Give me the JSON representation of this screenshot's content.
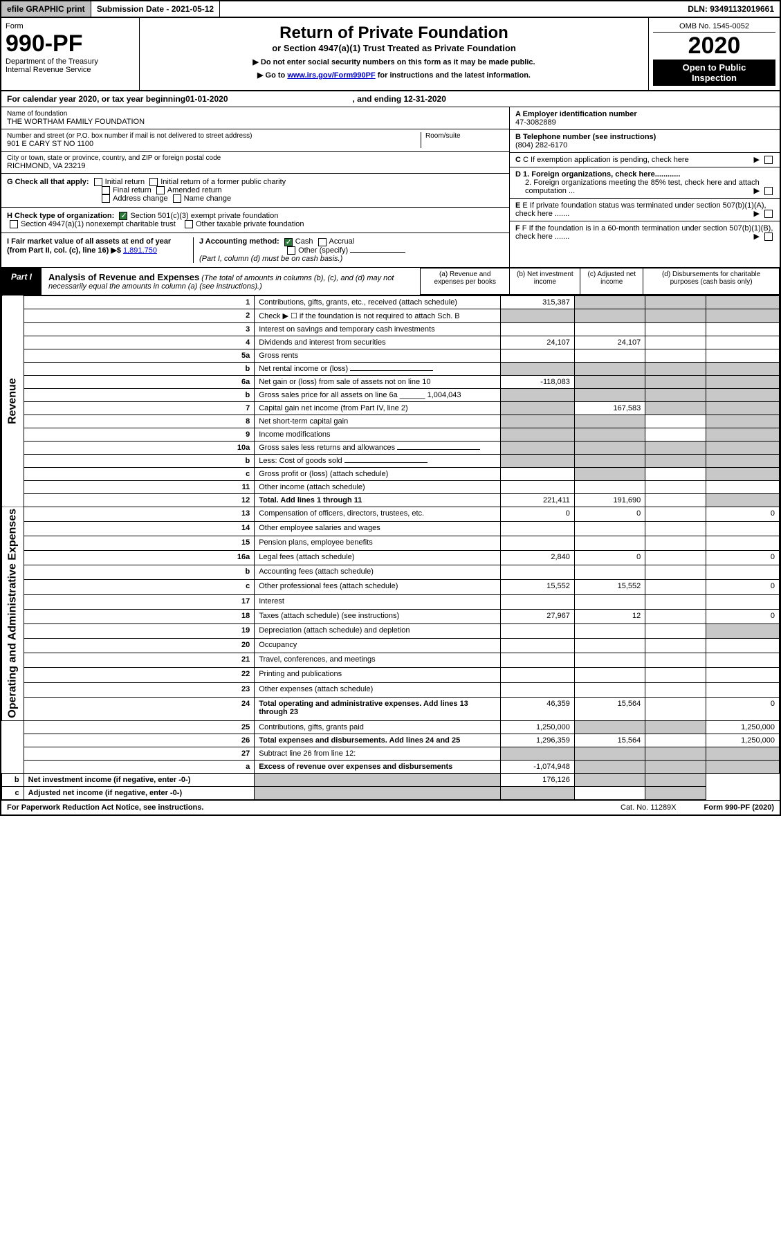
{
  "topbar": {
    "efile": "efile GRAPHIC print",
    "subdate_label": "Submission Date - ",
    "subdate": "2021-05-12",
    "dln_label": "DLN: ",
    "dln": "93491132019661"
  },
  "header": {
    "form_label": "Form",
    "form_no": "990-PF",
    "dept1": "Department of the Treasury",
    "dept2": "Internal Revenue Service",
    "title": "Return of Private Foundation",
    "subtitle": "or Section 4947(a)(1) Trust Treated as Private Foundation",
    "instr1": "▶ Do not enter social security numbers on this form as it may be made public.",
    "instr2_pre": "▶ Go to ",
    "instr2_link": "www.irs.gov/Form990PF",
    "instr2_post": " for instructions and the latest information.",
    "omb": "OMB No. 1545-0052",
    "year": "2020",
    "openpub1": "Open to Public",
    "openpub2": "Inspection"
  },
  "cal": {
    "pre": "For calendar year 2020, or tax year beginning ",
    "begin": "01-01-2020",
    "mid": ", and ending ",
    "end": "12-31-2020"
  },
  "info": {
    "name_label": "Name of foundation",
    "name": "THE WORTHAM FAMILY FOUNDATION",
    "addr_label": "Number and street (or P.O. box number if mail is not delivered to street address)",
    "room_label": "Room/suite",
    "addr": "901 E CARY ST NO 1100",
    "city_label": "City or town, state or province, country, and ZIP or foreign postal code",
    "city": "RICHMOND, VA  23219",
    "ein_label": "A Employer identification number",
    "ein": "47-3082889",
    "tel_label": "B Telephone number (see instructions)",
    "tel": "(804) 282-6170",
    "c_label": "C If exemption application is pending, check here",
    "d1": "D 1. Foreign organizations, check here............",
    "d2": "2. Foreign organizations meeting the 85% test, check here and attach computation ...",
    "e_label": "E If private foundation status was terminated under section 507(b)(1)(A), check here .......",
    "f_label": "F If the foundation is in a 60-month termination under section 507(b)(1)(B), check here .......",
    "g_label": "G Check all that apply:",
    "g_opts": [
      "Initial return",
      "Initial return of a former public charity",
      "Final return",
      "Amended return",
      "Address change",
      "Name change"
    ],
    "h_label": "H Check type of organization:",
    "h1": "Section 501(c)(3) exempt private foundation",
    "h2": "Section 4947(a)(1) nonexempt charitable trust",
    "h3": "Other taxable private foundation",
    "i_label": "I Fair market value of all assets at end of year (from Part II, col. (c), line 16) ▶$ ",
    "i_val": "1,891,750",
    "j_label": "J Accounting method:",
    "j_cash": "Cash",
    "j_accrual": "Accrual",
    "j_other": "Other (specify)",
    "j_note": "(Part I, column (d) must be on cash basis.)"
  },
  "part1": {
    "tab": "Part I",
    "title": "Analysis of Revenue and Expenses",
    "note": "(The total of amounts in columns (b), (c), and (d) may not necessarily equal the amounts in column (a) (see instructions).)",
    "cols": {
      "a": "(a) Revenue and expenses per books",
      "b": "(b) Net investment income",
      "c": "(c) Adjusted net income",
      "d": "(d) Disbursements for charitable purposes (cash basis only)"
    }
  },
  "side": {
    "rev": "Revenue",
    "exp": "Operating and Administrative Expenses"
  },
  "rows": [
    {
      "n": "1",
      "d": "Contributions, gifts, grants, etc., received (attach schedule)",
      "a": "315,387",
      "shade_bcd": true
    },
    {
      "n": "2",
      "d": "Check ▶ ☐ if the foundation is not required to attach Sch. B",
      "shade_all": true,
      "dotsline": true
    },
    {
      "n": "3",
      "d": "Interest on savings and temporary cash investments"
    },
    {
      "n": "4",
      "d": "Dividends and interest from securities",
      "a": "24,107",
      "b": "24,107"
    },
    {
      "n": "5a",
      "d": "Gross rents"
    },
    {
      "n": "b",
      "d": "Net rental income or (loss)",
      "inline_blank": true,
      "shade_all": true
    },
    {
      "n": "6a",
      "d": "Net gain or (loss) from sale of assets not on line 10",
      "a": "-118,083",
      "shade_bcd": true
    },
    {
      "n": "b",
      "d": "Gross sales price for all assets on line 6a",
      "inline_val": "1,004,043",
      "shade_all": true
    },
    {
      "n": "7",
      "d": "Capital gain net income (from Part IV, line 2)",
      "b": "167,583",
      "shade_a": true,
      "shade_cd": true
    },
    {
      "n": "8",
      "d": "Net short-term capital gain",
      "shade_ab": true,
      "shade_d": true
    },
    {
      "n": "9",
      "d": "Income modifications",
      "shade_ab": true,
      "shade_d": true
    },
    {
      "n": "10a",
      "d": "Gross sales less returns and allowances",
      "inline_blank": true,
      "shade_all": true
    },
    {
      "n": "b",
      "d": "Less: Cost of goods sold",
      "inline_blank": true,
      "shade_all": true
    },
    {
      "n": "c",
      "d": "Gross profit or (loss) (attach schedule)",
      "shade_b": true,
      "shade_d": true
    },
    {
      "n": "11",
      "d": "Other income (attach schedule)"
    },
    {
      "n": "12",
      "d": "Total. Add lines 1 through 11",
      "bold": true,
      "a": "221,411",
      "b": "191,690",
      "shade_d": true
    },
    {
      "n": "13",
      "d": "Compensation of officers, directors, trustees, etc.",
      "a": "0",
      "b": "0",
      "dval": "0"
    },
    {
      "n": "14",
      "d": "Other employee salaries and wages"
    },
    {
      "n": "15",
      "d": "Pension plans, employee benefits"
    },
    {
      "n": "16a",
      "d": "Legal fees (attach schedule)",
      "a": "2,840",
      "b": "0",
      "dval": "0"
    },
    {
      "n": "b",
      "d": "Accounting fees (attach schedule)"
    },
    {
      "n": "c",
      "d": "Other professional fees (attach schedule)",
      "a": "15,552",
      "b": "15,552",
      "dval": "0"
    },
    {
      "n": "17",
      "d": "Interest"
    },
    {
      "n": "18",
      "d": "Taxes (attach schedule) (see instructions)",
      "a": "27,967",
      "b": "12",
      "dval": "0"
    },
    {
      "n": "19",
      "d": "Depreciation (attach schedule) and depletion",
      "shade_d": true
    },
    {
      "n": "20",
      "d": "Occupancy"
    },
    {
      "n": "21",
      "d": "Travel, conferences, and meetings"
    },
    {
      "n": "22",
      "d": "Printing and publications"
    },
    {
      "n": "23",
      "d": "Other expenses (attach schedule)"
    },
    {
      "n": "24",
      "d": "Total operating and administrative expenses. Add lines 13 through 23",
      "bold": true,
      "a": "46,359",
      "b": "15,564",
      "dval": "0"
    },
    {
      "n": "25",
      "d": "Contributions, gifts, grants paid",
      "a": "1,250,000",
      "shade_bc": true,
      "dval": "1,250,000"
    },
    {
      "n": "26",
      "d": "Total expenses and disbursements. Add lines 24 and 25",
      "bold": true,
      "a": "1,296,359",
      "b": "15,564",
      "dval": "1,250,000"
    },
    {
      "n": "27",
      "d": "Subtract line 26 from line 12:",
      "shade_all": true
    },
    {
      "n": "a",
      "d": "Excess of revenue over expenses and disbursements",
      "bold": true,
      "a": "-1,074,948",
      "shade_bcd": true
    },
    {
      "n": "b",
      "d": "Net investment income (if negative, enter -0-)",
      "bold": true,
      "b": "176,126",
      "shade_a": true,
      "shade_cd": true
    },
    {
      "n": "c",
      "d": "Adjusted net income (if negative, enter -0-)",
      "bold": true,
      "shade_ab": true,
      "shade_d": true
    }
  ],
  "footer": {
    "left": "For Paperwork Reduction Act Notice, see instructions.",
    "cat": "Cat. No. 11289X",
    "right": "Form 990-PF (2020)"
  },
  "colors": {
    "shade": "#c8c8c8",
    "link": "#0000cc",
    "check": "#2d7a3d"
  }
}
